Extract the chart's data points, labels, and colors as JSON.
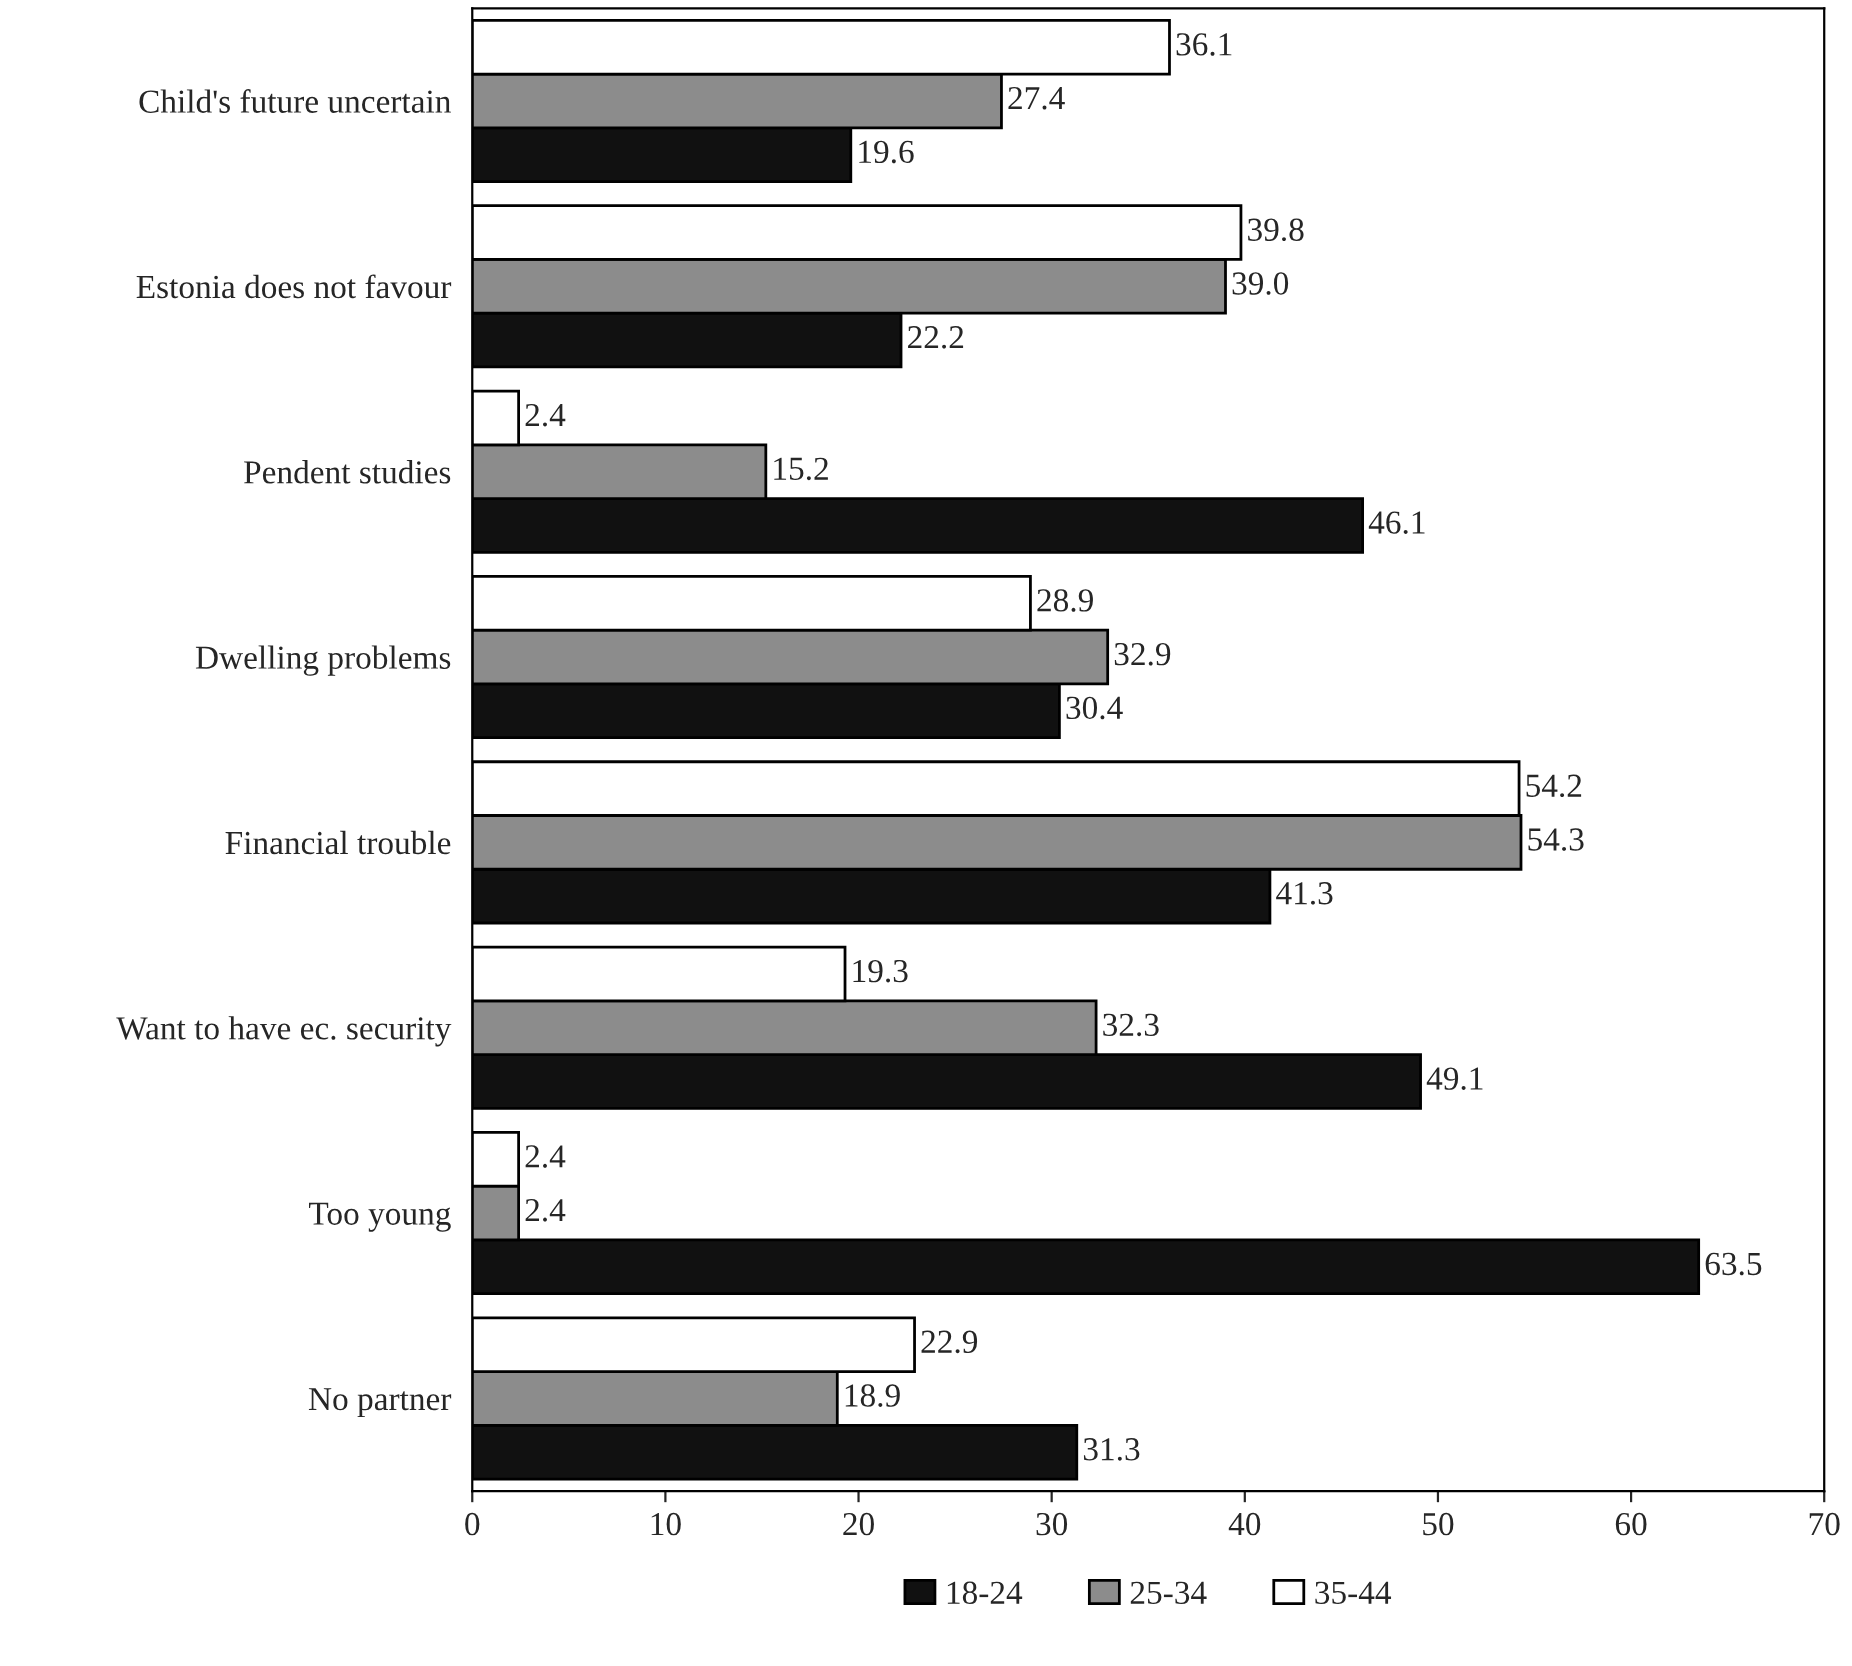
{
  "chart_data": {
    "type": "bar",
    "orientation": "horizontal",
    "categories": [
      "Child's future uncertain",
      "Estonia does not favour",
      "Pendent studies",
      "Dwelling problems",
      "Financial trouble",
      "Want to have ec. security",
      "Too young",
      "No partner"
    ],
    "series": [
      {
        "name": "18-24",
        "color": "#111111",
        "values": [
          19.6,
          22.2,
          46.1,
          30.4,
          41.3,
          49.1,
          63.5,
          31.3
        ],
        "value_labels": [
          "19.6",
          "22.2",
          "46.1",
          "30.4",
          "41.3",
          "49.1",
          "63.5",
          "31.3"
        ]
      },
      {
        "name": "25-34",
        "color": "#8c8c8c",
        "values": [
          27.4,
          39.0,
          15.2,
          32.9,
          54.3,
          32.3,
          2.4,
          18.9
        ],
        "value_labels": [
          "27.4",
          "39.0",
          "15.2",
          "32.9",
          "54.3",
          "32.3",
          "2.4",
          "18.9"
        ]
      },
      {
        "name": "35-44",
        "color": "#ffffff",
        "values": [
          36.1,
          39.8,
          2.4,
          28.9,
          54.2,
          19.3,
          2.4,
          22.9
        ],
        "value_labels": [
          "36.1",
          "39.8",
          "2.4",
          "28.9",
          "54.2",
          "19.3",
          "2.4",
          "22.9"
        ]
      }
    ],
    "xlim": [
      0,
      70
    ],
    "xticks": [
      0,
      10,
      20,
      30,
      40,
      50,
      60,
      70
    ],
    "legend": "bottom",
    "grid": false
  }
}
